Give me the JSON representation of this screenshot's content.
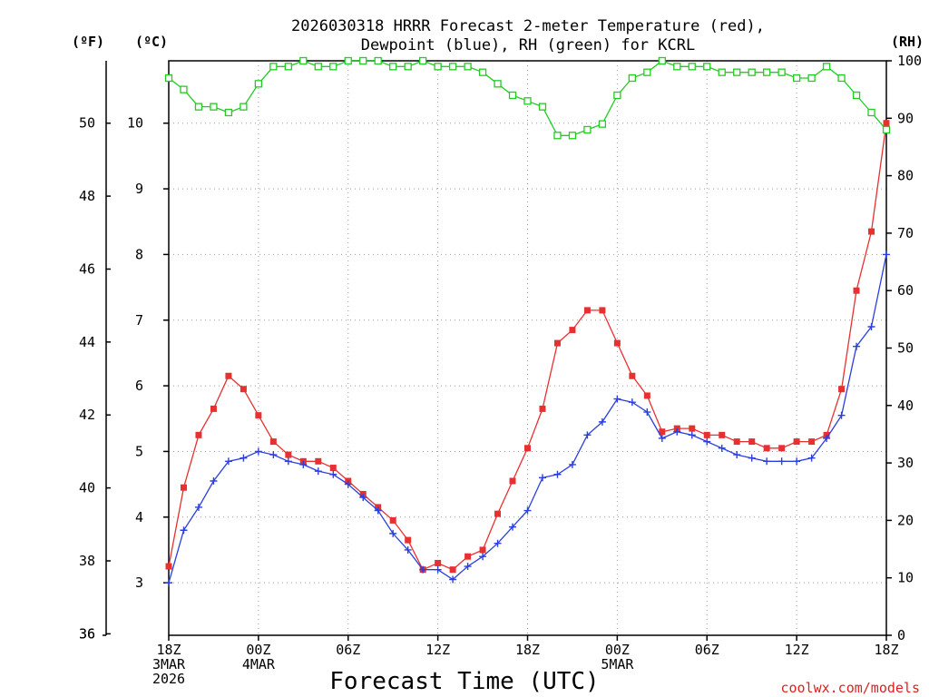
{
  "chart_data": {
    "type": "line",
    "title": [
      "2026030318 HRRR Forecast 2-meter Temperature (red),",
      "Dewpoint (blue), RH (green) for KCRL"
    ],
    "xlabel": "Forecast Time (UTC)",
    "credit": "coolwx.com/models",
    "units": {
      "fahrenheit": "(ºF)",
      "celsius": "(ºC)",
      "rh": "(RH)"
    },
    "x_hours": [
      0,
      1,
      2,
      3,
      4,
      5,
      6,
      7,
      8,
      9,
      10,
      11,
      12,
      13,
      14,
      15,
      16,
      17,
      18,
      19,
      20,
      21,
      22,
      23,
      24,
      25,
      26,
      27,
      28,
      29,
      30,
      31,
      32,
      33,
      34,
      35,
      36,
      37,
      38,
      39,
      40,
      41,
      42,
      43,
      44,
      45,
      46,
      47,
      48
    ],
    "xlim": [
      0,
      48
    ],
    "x_ticks": [
      {
        "hour": 0,
        "lines": [
          "18Z",
          "3MAR",
          "2026"
        ]
      },
      {
        "hour": 6,
        "lines": [
          "00Z",
          "4MAR"
        ]
      },
      {
        "hour": 12,
        "lines": [
          "06Z"
        ]
      },
      {
        "hour": 18,
        "lines": [
          "12Z"
        ]
      },
      {
        "hour": 24,
        "lines": [
          "18Z"
        ]
      },
      {
        "hour": 30,
        "lines": [
          "00Z",
          "5MAR"
        ]
      },
      {
        "hour": 36,
        "lines": [
          "06Z"
        ]
      },
      {
        "hour": 42,
        "lines": [
          "12Z"
        ]
      },
      {
        "hour": 48,
        "lines": [
          "18Z"
        ]
      }
    ],
    "ylim_celsius": [
      2.2,
      10.95
    ],
    "yticks_celsius": [
      "3",
      "4",
      "5",
      "6",
      "7",
      "8",
      "9",
      "10"
    ],
    "yticks_fahrenheit": [
      "36",
      "38",
      "40",
      "42",
      "44",
      "46",
      "48",
      "50"
    ],
    "ylim_rh": [
      0,
      100
    ],
    "yticks_rh": [
      "0",
      "10",
      "20",
      "30",
      "40",
      "50",
      "60",
      "70",
      "80",
      "90",
      "100"
    ],
    "series": [
      {
        "name": "Temperature",
        "unit": "C",
        "color": "#e83030",
        "marker": "filled-square",
        "values": [
          3.25,
          4.45,
          5.25,
          5.65,
          6.15,
          5.95,
          5.55,
          5.15,
          4.95,
          4.85,
          4.85,
          4.75,
          4.55,
          4.35,
          4.15,
          3.95,
          3.65,
          3.2,
          3.3,
          3.2,
          3.4,
          3.5,
          4.05,
          4.55,
          5.05,
          5.65,
          6.65,
          6.85,
          7.15,
          7.15,
          6.65,
          6.15,
          5.85,
          5.3,
          5.35,
          5.35,
          5.25,
          5.25,
          5.15,
          5.15,
          5.05,
          5.05,
          5.15,
          5.15,
          5.25,
          5.95,
          7.45,
          8.35,
          10.0
        ]
      },
      {
        "name": "Dewpoint",
        "unit": "C",
        "color": "#2b3fe0",
        "marker": "plus",
        "values": [
          3.0,
          3.8,
          4.15,
          4.55,
          4.85,
          4.9,
          5.0,
          4.95,
          4.85,
          4.8,
          4.7,
          4.65,
          4.5,
          4.3,
          4.1,
          3.75,
          3.5,
          3.2,
          3.2,
          3.05,
          3.25,
          3.4,
          3.6,
          3.85,
          4.1,
          4.6,
          4.65,
          4.8,
          5.25,
          5.45,
          5.8,
          5.75,
          5.6,
          5.2,
          5.3,
          5.25,
          5.15,
          5.05,
          4.95,
          4.9,
          4.85,
          4.85,
          4.85,
          4.9,
          5.2,
          5.55,
          6.6,
          6.9,
          8.0
        ]
      },
      {
        "name": "RH",
        "unit": "%",
        "color": "#22cc22",
        "marker": "open-square",
        "values": [
          97,
          95,
          92,
          92,
          91,
          92,
          96,
          99,
          99,
          100,
          99,
          99,
          100,
          100,
          100,
          99,
          99,
          100,
          99,
          99,
          99,
          98,
          96,
          94,
          93,
          92,
          87,
          87,
          88,
          89,
          94,
          97,
          98,
          100,
          99,
          99,
          99,
          98,
          98,
          98,
          98,
          98,
          97,
          97,
          99,
          97,
          94,
          91,
          88
        ]
      }
    ]
  }
}
